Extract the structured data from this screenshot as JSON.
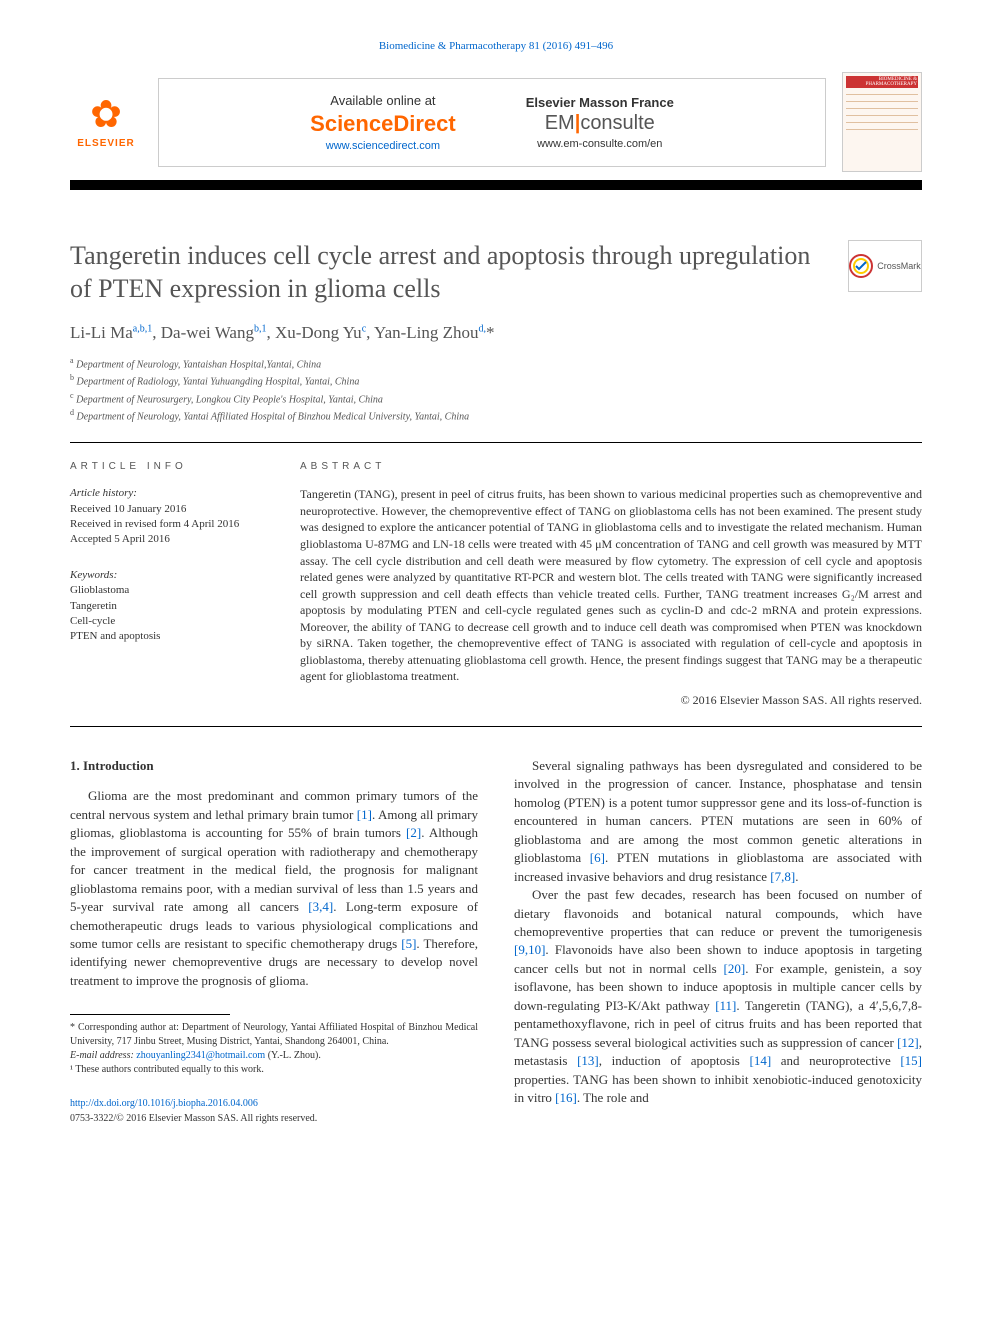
{
  "top_link": "Biomedicine & Pharmacotherapy 81 (2016) 491–496",
  "header": {
    "elsevier": "ELSEVIER",
    "available": "Available online at",
    "sd_logo": "ScienceDirect",
    "sd_url": "www.sciencedirect.com",
    "emf": "Elsevier Masson France",
    "em_left": "EM",
    "em_right": "consulte",
    "em_url": "www.em-consulte.com/en",
    "cover_title": "BIOMEDICINE & PHARMACOTHERAPY"
  },
  "crossmark": "CrossMark",
  "title": "Tangeretin induces cell cycle arrest and apoptosis through upregulation of PTEN expression in glioma cells",
  "authors_html": "Li-Li Ma<sup>a,b,1</sup>, Da-wei Wang<sup>b,1</sup>, Xu-Dong Yu<sup>c</sup>, Yan-Ling Zhou<sup>d,</sup><span class='star'>*</span>",
  "affils": {
    "a": "Department of Neurology, Yantaishan Hospital,Yantai, China",
    "b": "Department of Radiology, Yantai Yuhuangding Hospital, Yantai, China",
    "c": "Department of Neurosurgery, Longkou City People's Hospital, Yantai, China",
    "d": "Department of Neurology, Yantai Affiliated Hospital of Binzhou Medical University, Yantai, China"
  },
  "info": {
    "label": "ARTICLE INFO",
    "hist_title": "Article history:",
    "received": "Received 10 January 2016",
    "revised": "Received in revised form 4 April 2016",
    "accepted": "Accepted 5 April 2016",
    "kw_title": "Keywords:",
    "kw": [
      "Glioblastoma",
      "Tangeretin",
      "Cell-cycle",
      "PTEN and apoptosis"
    ]
  },
  "abstract": {
    "label": "ABSTRACT",
    "text": "Tangeretin (TANG), present in peel of citrus fruits, has been shown to various medicinal properties such as chemopreventive and neuroprotective. However, the chemopreventive effect of TANG on glioblastoma cells has not been examined. The present study was designed to explore the anticancer potential of TANG in glioblastoma cells and to investigate the related mechanism. Human glioblastoma U-87MG and LN-18 cells were treated with 45 μM concentration of TANG and cell growth was measured by MTT assay. The cell cycle distribution and cell death were measured by flow cytometry. The expression of cell cycle and apoptosis related genes were analyzed by quantitative RT-PCR and western blot. The cells treated with TANG were significantly increased cell growth suppression and cell death effects than vehicle treated cells. Further, TANG treatment increases G₂/M arrest and apoptosis by modulating PTEN and cell-cycle regulated genes such as cyclin-D and cdc-2 mRNA and protein expressions. Moreover, the ability of TANG to decrease cell growth and to induce cell death was compromised when PTEN was knockdown by siRNA. Taken together, the chemopreventive effect of TANG is associated with regulation of cell-cycle and apoptosis in glioblastoma, thereby attenuating glioblastoma cell growth. Hence, the present findings suggest that TANG may be a therapeutic agent for glioblastoma treatment.",
    "copyright": "© 2016 Elsevier Masson SAS. All rights reserved."
  },
  "intro": {
    "heading": "1. Introduction",
    "p1_a": "Glioma are the most predominant and common primary tumors of the central nervous system and lethal primary brain tumor ",
    "r1": "[1]",
    "p1_b": ". Among all primary gliomas, glioblastoma is accounting for 55% of brain tumors ",
    "r2": "[2]",
    "p1_c": ". Although the improvement of surgical operation with radiotherapy and chemotherapy for cancer treatment in the medical field, the prognosis for malignant glioblastoma remains poor, with a median survival of less than 1.5 years and 5-year survival rate among all cancers ",
    "r34": "[3,4]",
    "p1_d": ". Long-term exposure of chemotherapeutic drugs leads to various physiological complications and some tumor cells are resistant to specific chemotherapy drugs ",
    "r5": "[5]",
    "p1_e": ". Therefore, identifying newer chemopreventive drugs are necessary to develop novel treatment to improve the prognosis of glioma.",
    "p2_a": "Several signaling pathways has been dysregulated and considered to be involved in the progression of cancer. Instance, phosphatase and tensin homolog (PTEN) is a potent tumor suppressor gene and its loss-of-function is encountered in human cancers. PTEN mutations are seen in 60% of glioblastoma and are among the most common genetic alterations in glioblastoma ",
    "r6": "[6]",
    "p2_b": ". PTEN mutations in glioblastoma are associated with increased invasive behaviors and drug resistance ",
    "r78": "[7,8]",
    "p2_c": ".",
    "p3_a": "Over the past few decades, research has been focused on number of dietary flavonoids and botanical natural compounds, which have chemopreventive properties that can reduce or prevent the tumorigenesis ",
    "r910": "[9,10]",
    "p3_b": ". Flavonoids have also been shown to induce apoptosis in targeting cancer cells but not in normal cells ",
    "r20": "[20]",
    "p3_c": ". For example, genistein, a soy isoflavone, has been shown to induce apoptosis in multiple cancer cells by down-regulating PI3-K/Akt pathway ",
    "r11": "[11]",
    "p3_d": ". Tangeretin (TANG), a 4′,5,6,7,8-pentamethoxyflavone, rich in peel of citrus fruits and has been reported that TANG possess several biological activities such as suppression of cancer ",
    "r12": "[12]",
    "p3_e": ", metastasis ",
    "r13": "[13]",
    "p3_f": ", induction of apoptosis ",
    "r14": "[14]",
    "p3_g": " and neuroprotective ",
    "r15": "[15]",
    "p3_h": " properties. TANG has been shown to inhibit xenobiotic-induced genotoxicity in vitro ",
    "r16": "[16]",
    "p3_i": ". The role and"
  },
  "footnotes": {
    "corr": "* Corresponding author at: Department of Neurology, Yantai Affiliated Hospital of Binzhou Medical University, 717 Jinbu Street, Musing District, Yantai, Shandong 264001, China.",
    "email_label": "E-mail address: ",
    "email": "zhouyanling2341@hotmail.com",
    "email_who": " (Y.-L. Zhou).",
    "equal": "¹ These authors contributed equally to this work."
  },
  "doi": {
    "url": "http://dx.doi.org/10.1016/j.biopha.2016.04.006",
    "issn": "0753-3322/© 2016 Elsevier Masson SAS. All rights reserved."
  },
  "colors": {
    "link": "#0066cc",
    "orange": "#ff6600",
    "text": "#333333",
    "grey": "#555555"
  }
}
